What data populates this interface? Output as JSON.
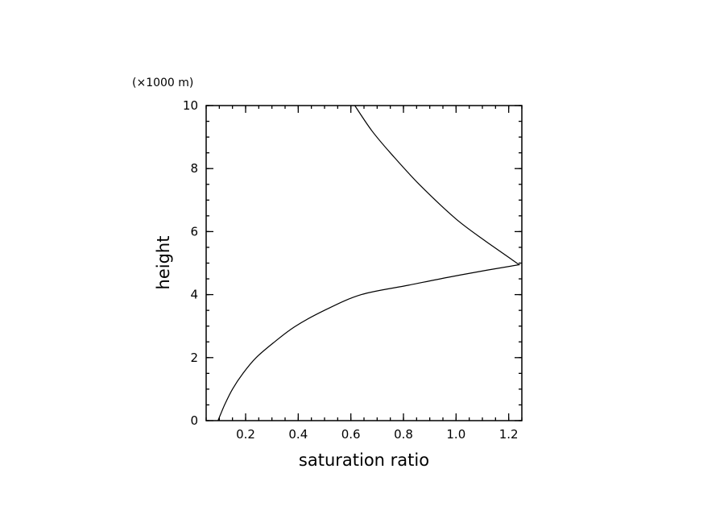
{
  "chart_data": {
    "type": "line",
    "xlabel": "saturation ratio",
    "ylabel": "height",
    "y_unit_label": "(×1000 m)",
    "xlim": [
      0.05,
      1.25
    ],
    "ylim": [
      0,
      10
    ],
    "x_ticks": [
      0.2,
      0.4,
      0.6,
      0.8,
      1.0,
      1.2
    ],
    "x_tick_labels": [
      "0.2",
      "0.4",
      "0.6",
      "0.8",
      "1.0",
      "1.2"
    ],
    "y_ticks": [
      0,
      2,
      4,
      6,
      8,
      10
    ],
    "y_tick_labels": [
      "0",
      "2",
      "4",
      "6",
      "8",
      "10"
    ],
    "grid": false,
    "legend": "none",
    "series": [
      {
        "color": "#000000",
        "points": [
          [
            0.095,
            0.0
          ],
          [
            0.12,
            0.5
          ],
          [
            0.15,
            1.0
          ],
          [
            0.19,
            1.5
          ],
          [
            0.24,
            2.0
          ],
          [
            0.31,
            2.5
          ],
          [
            0.39,
            3.0
          ],
          [
            0.5,
            3.5
          ],
          [
            0.64,
            4.0
          ],
          [
            0.82,
            4.3
          ],
          [
            0.97,
            4.55
          ],
          [
            1.12,
            4.78
          ],
          [
            1.24,
            4.95
          ],
          [
            1.12,
            5.65
          ],
          [
            1.0,
            6.4
          ],
          [
            0.86,
            7.5
          ],
          [
            0.75,
            8.5
          ],
          [
            0.68,
            9.2
          ],
          [
            0.615,
            10.0
          ]
        ]
      }
    ]
  }
}
